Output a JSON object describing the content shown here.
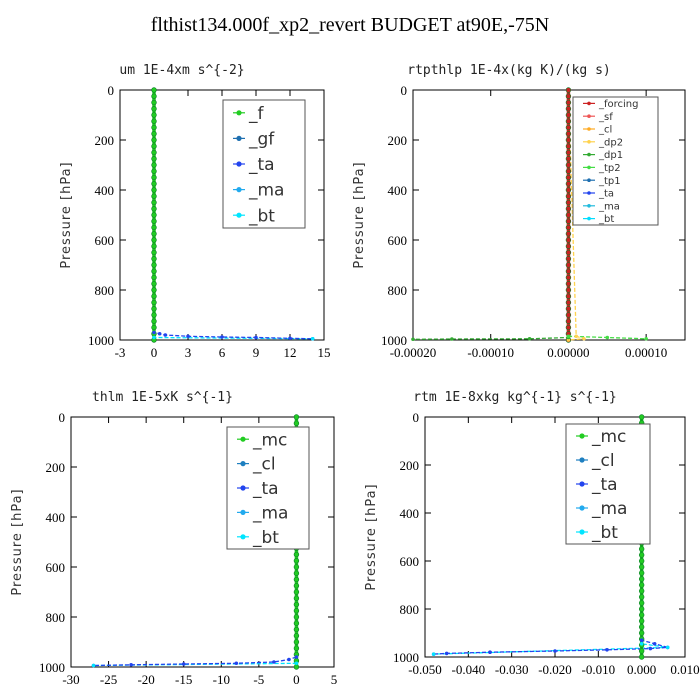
{
  "figure": {
    "title": "flthist134.000f_xp2_revert  BUDGET at90E,-75N"
  },
  "colors": {
    "f": "#22cc22",
    "gf": "#1e6fb0",
    "ta": "#2244ee",
    "ma": "#22aaee",
    "bt": "#00e5ff",
    "mc": "#22cc22",
    "cl": "#1e7fc0",
    "forcing": "#cc2222",
    "sf": "#ee5555",
    "cl2": "#ffaa22",
    "dp2": "#ffd24d",
    "dp1": "#33aa33",
    "tp2": "#44dd44",
    "tp1": "#1e6fb0",
    "ta2": "#2244ee",
    "ma2": "#22bbdd",
    "bt2": "#00ddff"
  },
  "chart_data": [
    {
      "type": "line",
      "title": "um  1E-4xm s^{-2}",
      "ylabel": "Pressure [hPa]",
      "xlim": [
        -3,
        15
      ],
      "ylim": [
        1000,
        0
      ],
      "xticks": [
        -3,
        0,
        3,
        6,
        9,
        12,
        15
      ],
      "xtick_labels": [
        "-3",
        "0",
        "3",
        "6",
        "9",
        "12",
        "15"
      ],
      "yticks": [
        0,
        200,
        400,
        600,
        800,
        1000
      ],
      "ytick_labels": [
        "0",
        "200",
        "400",
        "600",
        "800",
        "1000"
      ],
      "legend_position": "top-right",
      "legend_fontsize": 17,
      "series": [
        {
          "name": "_f",
          "color_key": "f",
          "x": [
            0,
            0
          ],
          "y": [
            0,
            1000
          ]
        },
        {
          "name": "_gf",
          "color_key": "gf",
          "x": [
            0,
            0
          ],
          "y": [
            0,
            1000
          ]
        },
        {
          "name": "_ta",
          "color_key": "ta",
          "x": [
            0,
            0,
            0.5,
            1,
            3,
            6,
            9,
            12,
            14
          ],
          "y": [
            0,
            970,
            975,
            980,
            985,
            988,
            990,
            993,
            995
          ]
        },
        {
          "name": "_ma",
          "color_key": "ma",
          "x": [
            0,
            0
          ],
          "y": [
            0,
            1000
          ]
        },
        {
          "name": "_bt",
          "color_key": "bt",
          "x": [
            0,
            0,
            14
          ],
          "y": [
            0,
            990,
            995
          ]
        }
      ]
    },
    {
      "type": "line",
      "title": "rtpthlp  1E-4x(kg K)/(kg s)",
      "ylabel": "Pressure [hPa]",
      "xlim": [
        -0.0002,
        0.00015
      ],
      "ylim": [
        1000,
        0
      ],
      "xticks": [
        -0.0002,
        -0.0001,
        0,
        0.0001
      ],
      "xtick_labels": [
        "-0.00020",
        "-0.00010",
        "0.00000",
        "0.00010"
      ],
      "yticks": [
        0,
        200,
        400,
        600,
        800,
        1000
      ],
      "ytick_labels": [
        "0",
        "200",
        "400",
        "600",
        "800",
        "1000"
      ],
      "legend_position": "top-right",
      "legend_fontsize": 10,
      "series": [
        {
          "name": "_forcing",
          "color_key": "forcing",
          "x": [
            0,
            0
          ],
          "y": [
            0,
            1000
          ]
        },
        {
          "name": "_sf",
          "color_key": "sf",
          "x": [
            0,
            0
          ],
          "y": [
            0,
            1000
          ]
        },
        {
          "name": "_cl",
          "color_key": "cl2",
          "x": [
            0,
            0
          ],
          "y": [
            0,
            1000
          ]
        },
        {
          "name": "_dp2",
          "color_key": "dp2",
          "x": [
            0,
            1e-05,
            2e-05,
            0
          ],
          "y": [
            0,
            985,
            995,
            1000
          ]
        },
        {
          "name": "_dp1",
          "color_key": "dp1",
          "x": [
            0,
            0,
            -5e-05,
            -0.00015,
            -0.0002
          ],
          "y": [
            0,
            990,
            995,
            996,
            997
          ]
        },
        {
          "name": "_tp2",
          "color_key": "tp2",
          "x": [
            0,
            0,
            5e-05,
            0.0001
          ],
          "y": [
            0,
            985,
            990,
            995
          ]
        },
        {
          "name": "_tp1",
          "color_key": "tp1",
          "x": [
            0,
            0
          ],
          "y": [
            0,
            1000
          ]
        },
        {
          "name": "_ta",
          "color_key": "ta2",
          "x": [
            0,
            0
          ],
          "y": [
            0,
            1000
          ]
        },
        {
          "name": "_ma",
          "color_key": "ma2",
          "x": [
            0,
            0
          ],
          "y": [
            0,
            1000
          ]
        },
        {
          "name": "_bt",
          "color_key": "bt2",
          "x": [
            0,
            0
          ],
          "y": [
            0,
            1000
          ]
        }
      ]
    },
    {
      "type": "line",
      "title": "thlm  1E-5xK s^{-1}",
      "ylabel": "Pressure [hPa]",
      "xlim": [
        -30,
        5
      ],
      "ylim": [
        1000,
        0
      ],
      "xticks": [
        -30,
        -25,
        -20,
        -15,
        -10,
        -5,
        0,
        5
      ],
      "xtick_labels": [
        "-30",
        "-25",
        "-20",
        "-15",
        "-10",
        "-5",
        "0",
        "5"
      ],
      "yticks": [
        0,
        200,
        400,
        600,
        800,
        1000
      ],
      "ytick_labels": [
        "0",
        "200",
        "400",
        "600",
        "800",
        "1000"
      ],
      "legend_position": "top-right",
      "legend_fontsize": 17,
      "series": [
        {
          "name": "_mc",
          "color_key": "mc",
          "x": [
            0,
            0
          ],
          "y": [
            0,
            1000
          ]
        },
        {
          "name": "_cl",
          "color_key": "cl",
          "x": [
            0,
            0
          ],
          "y": [
            0,
            1000
          ]
        },
        {
          "name": "_ta",
          "color_key": "ta",
          "x": [
            0,
            0,
            -1,
            -3,
            -8,
            -15,
            -22,
            -27
          ],
          "y": [
            0,
            960,
            970,
            980,
            985,
            988,
            991,
            994
          ]
        },
        {
          "name": "_ma",
          "color_key": "ma",
          "x": [
            0,
            0
          ],
          "y": [
            0,
            1000
          ]
        },
        {
          "name": "_bt",
          "color_key": "bt",
          "x": [
            0,
            0,
            -27
          ],
          "y": [
            0,
            985,
            994
          ]
        }
      ]
    },
    {
      "type": "line",
      "title": "rtm  1E-8xkg kg^{-1} s^{-1}",
      "ylabel": "Pressure [hPa]",
      "xlim": [
        -0.05,
        0.01
      ],
      "ylim": [
        1000,
        0
      ],
      "xticks": [
        -0.05,
        -0.04,
        -0.03,
        -0.02,
        -0.01,
        0,
        0.01
      ],
      "xtick_labels": [
        "-0.050",
        "-0.040",
        "-0.030",
        "-0.020",
        "-0.010",
        "0.000",
        "0.010"
      ],
      "yticks": [
        0,
        200,
        400,
        600,
        800,
        1000
      ],
      "ytick_labels": [
        "0",
        "200",
        "400",
        "600",
        "800",
        "1000"
      ],
      "legend_position": "top-right",
      "legend_fontsize": 17,
      "series": [
        {
          "name": "_mc",
          "color_key": "mc",
          "x": [
            0,
            0
          ],
          "y": [
            0,
            1000
          ]
        },
        {
          "name": "_cl",
          "color_key": "cl",
          "x": [
            0,
            0
          ],
          "y": [
            0,
            1000
          ]
        },
        {
          "name": "_ta",
          "color_key": "ta",
          "x": [
            0,
            0,
            0.003,
            0.006,
            0.002,
            -0.008,
            -0.02,
            -0.035,
            -0.045,
            -0.048
          ],
          "y": [
            0,
            930,
            945,
            960,
            965,
            970,
            975,
            980,
            985,
            988
          ]
        },
        {
          "name": "_ma",
          "color_key": "ma",
          "x": [
            0,
            0
          ],
          "y": [
            0,
            1000
          ]
        },
        {
          "name": "_bt",
          "color_key": "bt",
          "x": [
            0,
            0,
            0.006,
            -0.048
          ],
          "y": [
            0,
            945,
            960,
            988
          ]
        }
      ]
    }
  ]
}
